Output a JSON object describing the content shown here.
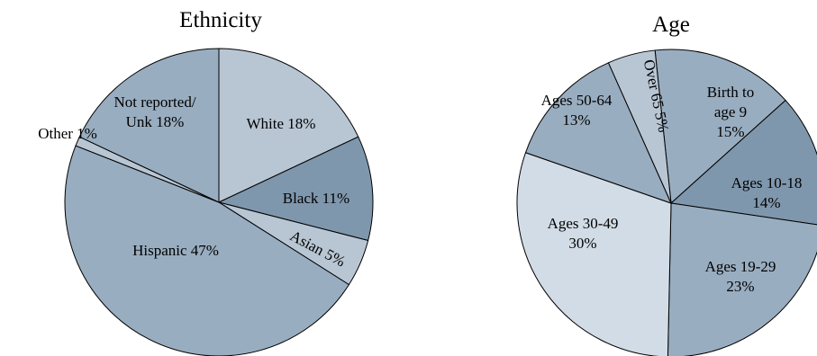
{
  "chart_data": [
    {
      "type": "pie",
      "title": "Ethnicity",
      "colors": {
        "light": "#b8c6d4",
        "mid": "#99adc0",
        "dark": "#7f97ad"
      },
      "slices": [
        {
          "name": "White",
          "text": "White 18%",
          "value": 18,
          "color": "#b8c6d4"
        },
        {
          "name": "Black",
          "text": "Black 11%",
          "value": 11,
          "color": "#7f97ad"
        },
        {
          "name": "Asian",
          "text": "Asian 5%",
          "value": 5,
          "color": "#b8c6d4"
        },
        {
          "name": "Hispanic",
          "text": "Hispanic 47%",
          "value": 47,
          "color": "#99adc0"
        },
        {
          "name": "Other",
          "text": "Other 1%",
          "value": 1,
          "color": "#b8c6d4"
        },
        {
          "name": "Not reported/Unk",
          "text": [
            "Not reported/",
            "Unk 18%"
          ],
          "value": 18,
          "color": "#99adc0"
        }
      ]
    },
    {
      "type": "pie",
      "title": "Age",
      "slices": [
        {
          "name": "Birth to age 9",
          "text": [
            "Birth to",
            "age 9",
            "15%"
          ],
          "value": 15,
          "color": "#99adc0"
        },
        {
          "name": "Ages 10-18",
          "text": [
            "Ages 10-18",
            "14%"
          ],
          "value": 14,
          "color": "#7f97ad"
        },
        {
          "name": "Ages 19-29",
          "text": [
            "Ages 19-29",
            "23%"
          ],
          "value": 23,
          "color": "#99adc0"
        },
        {
          "name": "Ages 30-49",
          "text": [
            "Ages 30-49",
            "30%"
          ],
          "value": 30,
          "color": "#d2dce6"
        },
        {
          "name": "Ages 50-64",
          "text": [
            "Ages 50-64",
            "13%"
          ],
          "value": 13,
          "color": "#99adc0"
        },
        {
          "name": "Over 65",
          "text": "Over 65  5%",
          "value": 5,
          "color": "#b8c6d4"
        }
      ]
    }
  ]
}
